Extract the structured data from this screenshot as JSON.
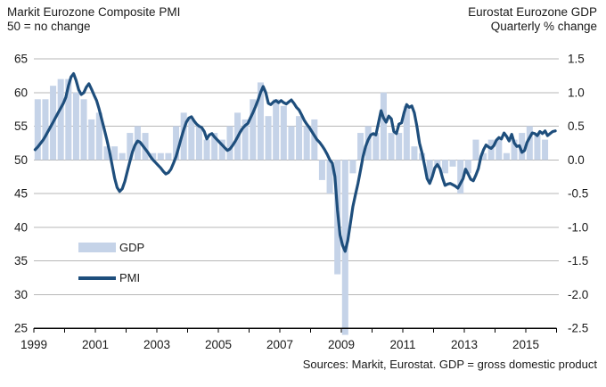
{
  "titles": {
    "left_line1": "Markit Eurozone Composite PMI",
    "left_line2": "50 = no change",
    "right_line1": "Eurostat Eurozone GDP",
    "right_line2": "Quarterly % change"
  },
  "legend": {
    "gdp_label": "GDP",
    "pmi_label": "PMI"
  },
  "footer": "Sources: Markit, Eurostat. GDP = gross domestic product",
  "colors": {
    "gdp_bar": "#c5d3e8",
    "pmi_line": "#1e4e7c",
    "gridline": "#b7b7b7",
    "axis": "#000000",
    "text": "#1a1a1a"
  },
  "chart_data": {
    "type": "combo",
    "title": "Markit Eurozone Composite PMI vs Eurostat Eurozone GDP",
    "grid": true,
    "legend_position": "inside-lower-left",
    "x_axis": {
      "range": [
        1999,
        2016
      ],
      "tick_years": [
        1999,
        2000,
        2001,
        2002,
        2003,
        2004,
        2005,
        2006,
        2007,
        2008,
        2009,
        2010,
        2011,
        2012,
        2013,
        2014,
        2015,
        2016
      ],
      "label_years": [
        "1999",
        "2001",
        "2003",
        "2005",
        "2007",
        "2009",
        "2011",
        "2013",
        "2015"
      ]
    },
    "left_axis": {
      "label": "Markit Eurozone Composite PMI, 50 = no change",
      "range": [
        25,
        65
      ],
      "ticks": [
        "65",
        "60",
        "55",
        "50",
        "45",
        "40",
        "35",
        "30",
        "25"
      ]
    },
    "right_axis": {
      "label": "Eurostat Eurozone GDP, Quarterly % change",
      "range": [
        -2.5,
        1.5
      ],
      "ticks": [
        "1.5",
        "1.0",
        "0.5",
        "0.0",
        "-0.5",
        "-1.0",
        "-1.5",
        "-2.0",
        "-2.5"
      ]
    },
    "series": [
      {
        "name": "GDP",
        "type": "bar",
        "axis": "right",
        "start": "1999Q1",
        "interval": "quarter",
        "values": [
          0.9,
          0.9,
          1.1,
          1.2,
          1.2,
          1.0,
          0.9,
          0.6,
          0.7,
          0.2,
          0.2,
          0.1,
          0.4,
          0.5,
          0.4,
          0.1,
          0.1,
          0.1,
          0.5,
          0.7,
          0.6,
          0.5,
          0.3,
          0.4,
          0.3,
          0.5,
          0.7,
          0.6,
          0.9,
          1.15,
          0.65,
          0.9,
          0.8,
          0.5,
          0.65,
          0.5,
          0.6,
          -0.3,
          -0.5,
          -1.7,
          -2.6,
          -0.2,
          0.4,
          0.5,
          0.4,
          1.0,
          0.4,
          0.4,
          0.8,
          0.2,
          0.1,
          -0.3,
          -0.1,
          -0.2,
          -0.1,
          -0.5,
          -0.2,
          0.3,
          0.1,
          0.3,
          0.3,
          0.1,
          0.3,
          0.4,
          0.5,
          0.4,
          0.3
        ]
      },
      {
        "name": "PMI",
        "type": "line",
        "axis": "left",
        "start": "1999-01",
        "interval": "month",
        "values": [
          51.5,
          51.9,
          52.4,
          52.9,
          53.5,
          54.2,
          54.9,
          55.6,
          56.3,
          57.0,
          57.7,
          58.4,
          59.3,
          61.0,
          62.3,
          62.8,
          61.8,
          60.4,
          59.7,
          60.0,
          60.8,
          61.3,
          60.5,
          59.6,
          58.8,
          57.5,
          56.0,
          54.5,
          53.0,
          51.3,
          49.3,
          47.3,
          45.9,
          45.3,
          45.7,
          46.8,
          48.3,
          49.8,
          51.2,
          52.2,
          52.8,
          52.6,
          52.1,
          51.6,
          51.1,
          50.5,
          50.0,
          49.6,
          49.2,
          48.8,
          48.3,
          47.9,
          48.1,
          48.6,
          49.5,
          50.5,
          51.8,
          53.2,
          54.5,
          55.6,
          56.2,
          56.4,
          55.8,
          55.3,
          55.0,
          54.8,
          54.2,
          53.1,
          53.7,
          53.9,
          53.4,
          53.0,
          52.6,
          52.2,
          51.8,
          51.4,
          51.6,
          52.1,
          52.7,
          53.4,
          54.1,
          54.7,
          55.1,
          55.4,
          56.2,
          57.0,
          57.9,
          58.9,
          60.0,
          60.9,
          60.0,
          58.4,
          58.2,
          58.6,
          58.8,
          58.5,
          58.8,
          58.5,
          58.3,
          58.6,
          58.9,
          58.4,
          57.8,
          57.4,
          56.7,
          55.9,
          55.3,
          54.8,
          54.2,
          53.6,
          53.0,
          52.6,
          52.1,
          51.5,
          50.8,
          50.0,
          49.5,
          47.5,
          42.5,
          38.8,
          37.3,
          36.4,
          38.0,
          40.5,
          43.0,
          44.8,
          46.5,
          48.5,
          50.5,
          52.0,
          53.0,
          53.7,
          53.9,
          53.7,
          55.5,
          57.3,
          56.2,
          55.6,
          56.5,
          56.1,
          54.2,
          53.9,
          55.3,
          55.5,
          57.0,
          58.2,
          57.8,
          58.0,
          57.0,
          55.0,
          52.5,
          51.0,
          49.2,
          47.2,
          46.5,
          47.5,
          48.8,
          49.3,
          48.7,
          47.3,
          46.2,
          46.4,
          46.5,
          46.3,
          46.1,
          45.8,
          46.5,
          47.2,
          48.6,
          47.9,
          47.1,
          46.9,
          47.7,
          48.7,
          50.5,
          51.5,
          52.2,
          51.9,
          51.7,
          52.1,
          52.9,
          53.3,
          53.1,
          54.0,
          53.5,
          52.8,
          53.8,
          52.5,
          52.0,
          52.1,
          51.1,
          51.4,
          52.6,
          53.3,
          54.0,
          53.9,
          53.6,
          54.2,
          53.9,
          54.3,
          53.6,
          53.9,
          54.2,
          54.3
        ]
      }
    ]
  }
}
